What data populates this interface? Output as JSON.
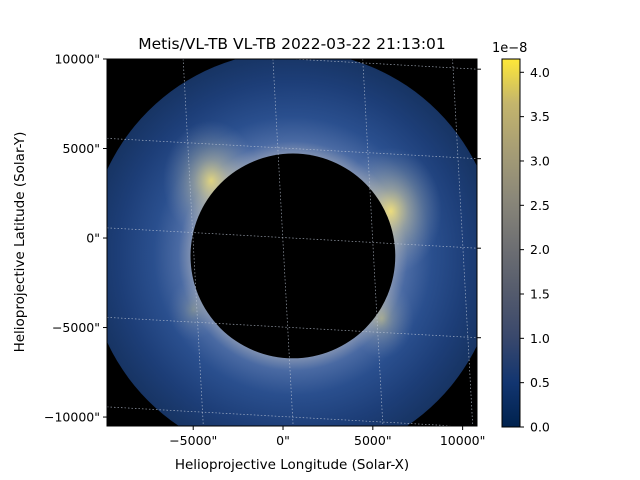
{
  "chart_data": {
    "type": "heatmap",
    "title": "Metis/VL-TB VL-TB 2022-03-22 21:13:01",
    "xlabel": "Helioprojective Longitude (Solar-X)",
    "ylabel": "Helioprojective Latitude (Solar-Y)",
    "xlim": [
      -9800,
      10800
    ],
    "ylim": [
      -10500,
      10000
    ],
    "x_ticks": [
      {
        "value": -5000,
        "label": "−5000\""
      },
      {
        "value": 0,
        "label": "0\""
      },
      {
        "value": 5000,
        "label": "5000\""
      },
      {
        "value": 10000,
        "label": "10000\""
      }
    ],
    "y_ticks": [
      {
        "value": 10000,
        "label": "10000\""
      },
      {
        "value": 5000,
        "label": "5000\""
      },
      {
        "value": 0,
        "label": "0\""
      },
      {
        "value": -5000,
        "label": "−5000\""
      },
      {
        "value": -10000,
        "label": "−10000\""
      }
    ],
    "occulter": {
      "center_x": 550,
      "center_y": -1000,
      "radius": 5700
    },
    "field_of_view": {
      "center_x": 550,
      "center_y": -1000,
      "radius": 11400
    },
    "bright_regions": [
      {
        "x": -4000,
        "y": 3200,
        "intensity": 3.8
      },
      {
        "x": 6000,
        "y": 1500,
        "intensity": 4.1
      },
      {
        "x": 5500,
        "y": -4500,
        "intensity": 2.0
      },
      {
        "x": -5000,
        "y": -4000,
        "intensity": 1.2
      }
    ],
    "colorbar": {
      "colormap": "cividis",
      "multiplier_label": "1e−8",
      "min": 0.0,
      "max": 4.15,
      "ticks": [
        {
          "value": 0.0,
          "label": "0.0"
        },
        {
          "value": 0.5,
          "label": "0.5"
        },
        {
          "value": 1.0,
          "label": "1.0"
        },
        {
          "value": 1.5,
          "label": "1.5"
        },
        {
          "value": 2.0,
          "label": "2.0"
        },
        {
          "value": 2.5,
          "label": "2.5"
        },
        {
          "value": 3.0,
          "label": "3.0"
        },
        {
          "value": 3.5,
          "label": "3.5"
        },
        {
          "value": 4.0,
          "label": "4.0"
        }
      ]
    },
    "grid": true,
    "colors": {
      "background": "#000000",
      "corona_base": "#1f3b73",
      "corona_bright": "#e8d88a",
      "grid": "#bfc8d8"
    }
  }
}
